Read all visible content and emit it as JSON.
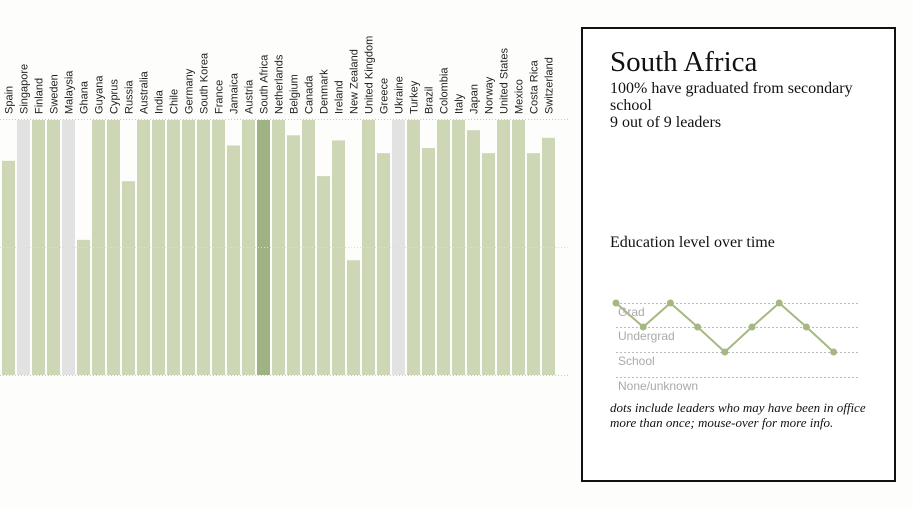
{
  "chart_data": [
    {
      "type": "bar",
      "categories": [
        "Spain",
        "Singapore",
        "Finland",
        "Sweden",
        "Malaysia",
        "Ghana",
        "Guyana",
        "Cyprus",
        "Russia",
        "Australia",
        "India",
        "Chile",
        "Germany",
        "South Korea",
        "France",
        "Jamaica",
        "Austria",
        "South Africa",
        "Netherlands",
        "Belgium",
        "Canada",
        "Denmark",
        "Ireland",
        "New Zealand",
        "United Kingdom",
        "Greece",
        "Ukraine",
        "Turkey",
        "Brazil",
        "Colombia",
        "Italy",
        "Japan",
        "Norway",
        "United States",
        "Mexico",
        "Costa Rica",
        "Switzerland"
      ],
      "values": [
        84,
        100,
        100,
        100,
        100,
        53,
        100,
        100,
        76,
        100,
        100,
        100,
        100,
        100,
        100,
        90,
        100,
        100,
        100,
        94,
        100,
        78,
        92,
        45,
        100,
        87,
        100,
        100,
        89,
        100,
        100,
        96,
        87,
        100,
        100,
        87,
        93
      ],
      "no_data": [
        "Singapore",
        "Malaysia",
        "Ukraine"
      ],
      "highlighted": "South Africa",
      "ylim": [
        0,
        100
      ],
      "colors": {
        "bar": "#cdd7b6",
        "highlight": "#9eb284",
        "no_data": "#e2e2e2"
      }
    },
    {
      "type": "line",
      "title": "Education level over time",
      "levels": [
        "Grad",
        "Undergrad",
        "School",
        "None/unknown"
      ],
      "x": [
        1,
        2,
        3,
        4,
        5,
        6,
        7,
        8,
        9
      ],
      "values": [
        "Grad",
        "Undergrad",
        "Grad",
        "Undergrad",
        "School",
        "Undergrad",
        "Grad",
        "Undergrad",
        "School"
      ],
      "colors": {
        "line": "#a6b882"
      }
    }
  ],
  "panel": {
    "country": "South Africa",
    "grad_stat": "100% have graduated from secondary school",
    "leader_count": "9 out of 9 leaders",
    "footnote": "dots include leaders who may have been in office more than once; mouse-over for more info."
  }
}
